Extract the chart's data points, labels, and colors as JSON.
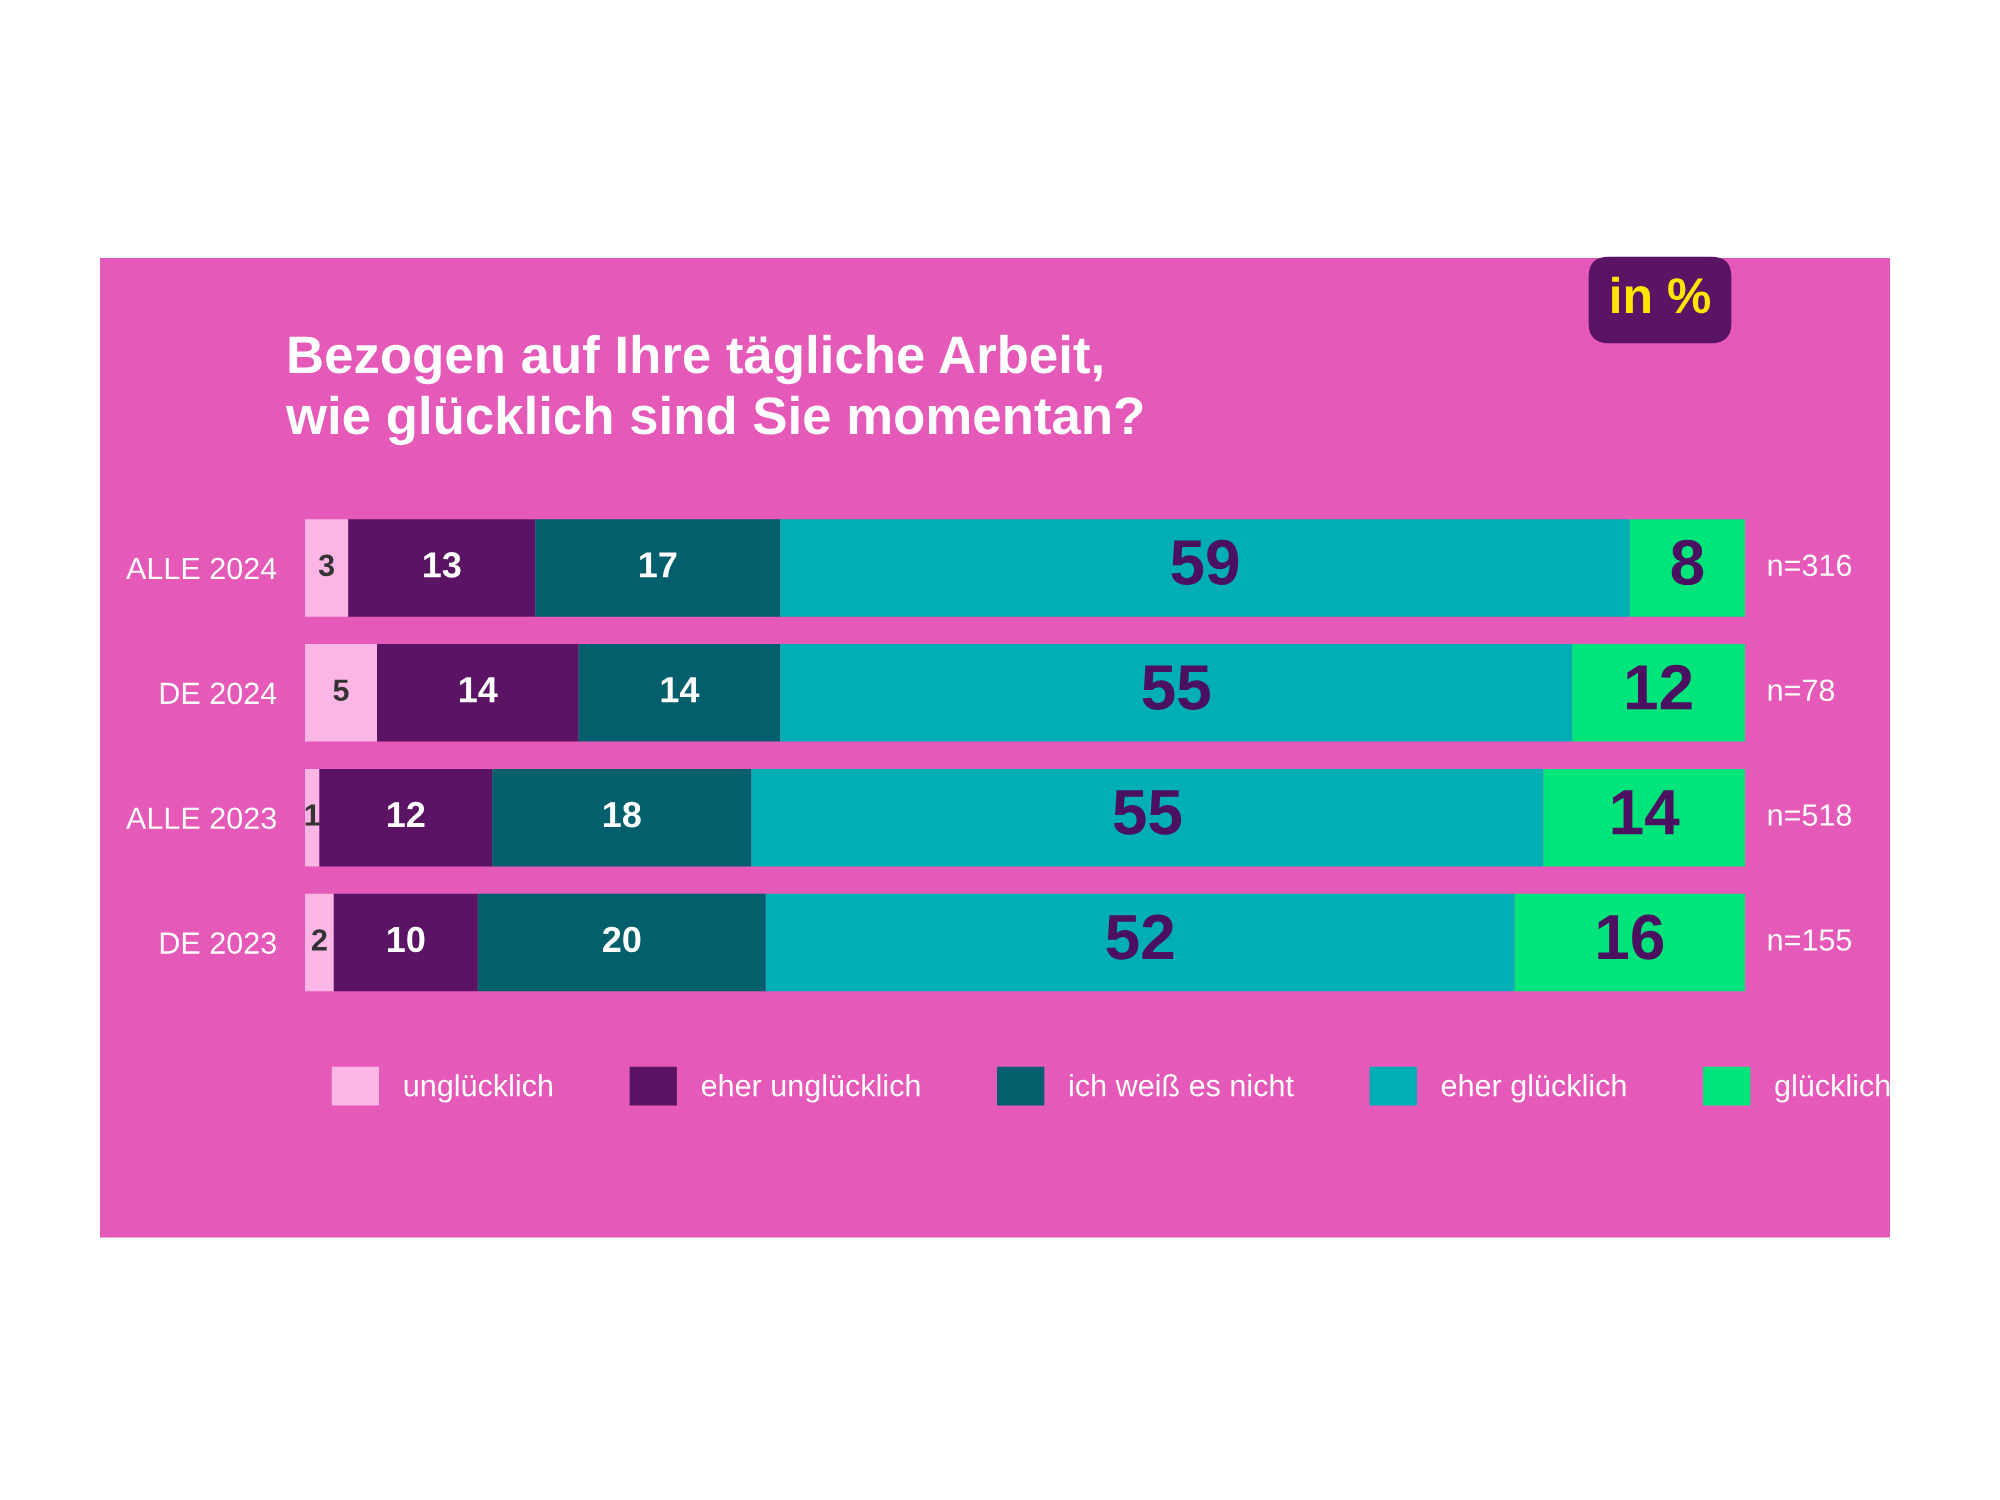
{
  "chart_data": {
    "type": "bar",
    "orientation": "horizontal",
    "stacked": true,
    "data_labels": true,
    "legend": "bottom",
    "title": "Bezogen auf Ihre tägliche Arbeit,\nwie glücklich sind Sie momentan?",
    "categories": [
      "ALLE 2024",
      "DE 2024",
      "ALLE 2023",
      "DE 2023"
    ],
    "series": [
      {
        "name": "unglücklich",
        "color": "#fbb6e6",
        "values": [
          3,
          5,
          1,
          2
        ]
      },
      {
        "name": "eher unglücklich",
        "color": "#5a1463",
        "values": [
          13,
          14,
          12,
          10
        ]
      },
      {
        "name": "ich weiß es nicht",
        "color": "#035f6b",
        "values": [
          17,
          14,
          18,
          20
        ]
      },
      {
        "name": "eher glücklich",
        "color": "#00aeb6",
        "values": [
          59,
          55,
          55,
          52
        ]
      },
      {
        "name": "glücklich",
        "color": "#00e47c",
        "values": [
          8,
          12,
          14,
          16
        ]
      }
    ],
    "annotations": [
      "in %",
      "n=316",
      "n=78",
      "n=518",
      "n=155"
    ]
  }
}
